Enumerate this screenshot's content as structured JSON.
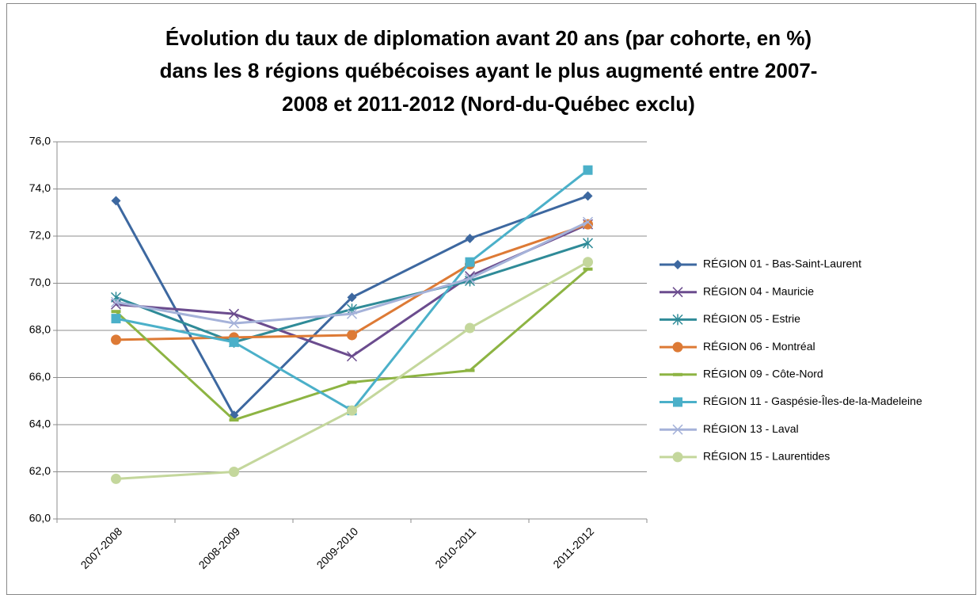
{
  "chart_data": {
    "type": "line",
    "title": [
      "Évolution du taux de diplomation avant 20 ans (par cohorte, en %)",
      "dans les 8 régions québécoises ayant le plus augmenté entre 2007-",
      "2008 et 2011-2012 (Nord-du-Québec exclu)"
    ],
    "categories": [
      "2007-2008",
      "2008-2009",
      "2009-2010",
      "2010-2011",
      "2011-2012"
    ],
    "ylim": [
      60,
      76
    ],
    "yticks": [
      {
        "value": 60,
        "label": "60,0"
      },
      {
        "value": 62,
        "label": "62,0"
      },
      {
        "value": 64,
        "label": "64,0"
      },
      {
        "value": 66,
        "label": "66,0"
      },
      {
        "value": 68,
        "label": "68,0"
      },
      {
        "value": 70,
        "label": "70,0"
      },
      {
        "value": 72,
        "label": "72,0"
      },
      {
        "value": 74,
        "label": "74,0"
      },
      {
        "value": 76,
        "label": "76,0"
      }
    ],
    "grid": true,
    "legend": "right",
    "series": [
      {
        "name": "RÉGION 01 - Bas-Saint-Laurent",
        "color": "#3d68a0",
        "marker": "diamond",
        "values": [
          73.5,
          64.4,
          69.4,
          71.9,
          73.7
        ]
      },
      {
        "name": "RÉGION 04 - Mauricie",
        "color": "#6b4c8e",
        "marker": "x",
        "values": [
          69.1,
          68.7,
          66.9,
          70.3,
          72.5
        ]
      },
      {
        "name": "RÉGION 05 - Estrie",
        "color": "#2f8b98",
        "marker": "star",
        "values": [
          69.4,
          67.5,
          68.9,
          70.1,
          71.7
        ]
      },
      {
        "name": "RÉGION 06 - Montréal",
        "color": "#dd7a35",
        "marker": "circle",
        "values": [
          67.6,
          67.7,
          67.8,
          70.8,
          72.5
        ]
      },
      {
        "name": "RÉGION 09 - Côte-Nord",
        "color": "#8db443",
        "marker": "dash",
        "values": [
          68.8,
          64.2,
          65.8,
          66.3,
          70.6
        ]
      },
      {
        "name": "RÉGION 11 - Gaspésie-Îles-de-la-Madeleine",
        "color": "#4bb0c9",
        "marker": "square",
        "values": [
          68.5,
          67.5,
          64.6,
          70.9,
          74.8
        ]
      },
      {
        "name": "RÉGION 13 - Laval",
        "color": "#a5b2d9",
        "marker": "x",
        "values": [
          69.2,
          68.3,
          68.7,
          70.2,
          72.6
        ]
      },
      {
        "name": "RÉGION 15 - Laurentides",
        "color": "#c4d79c",
        "marker": "circle",
        "values": [
          61.7,
          62.0,
          64.6,
          68.1,
          70.9
        ]
      }
    ]
  }
}
